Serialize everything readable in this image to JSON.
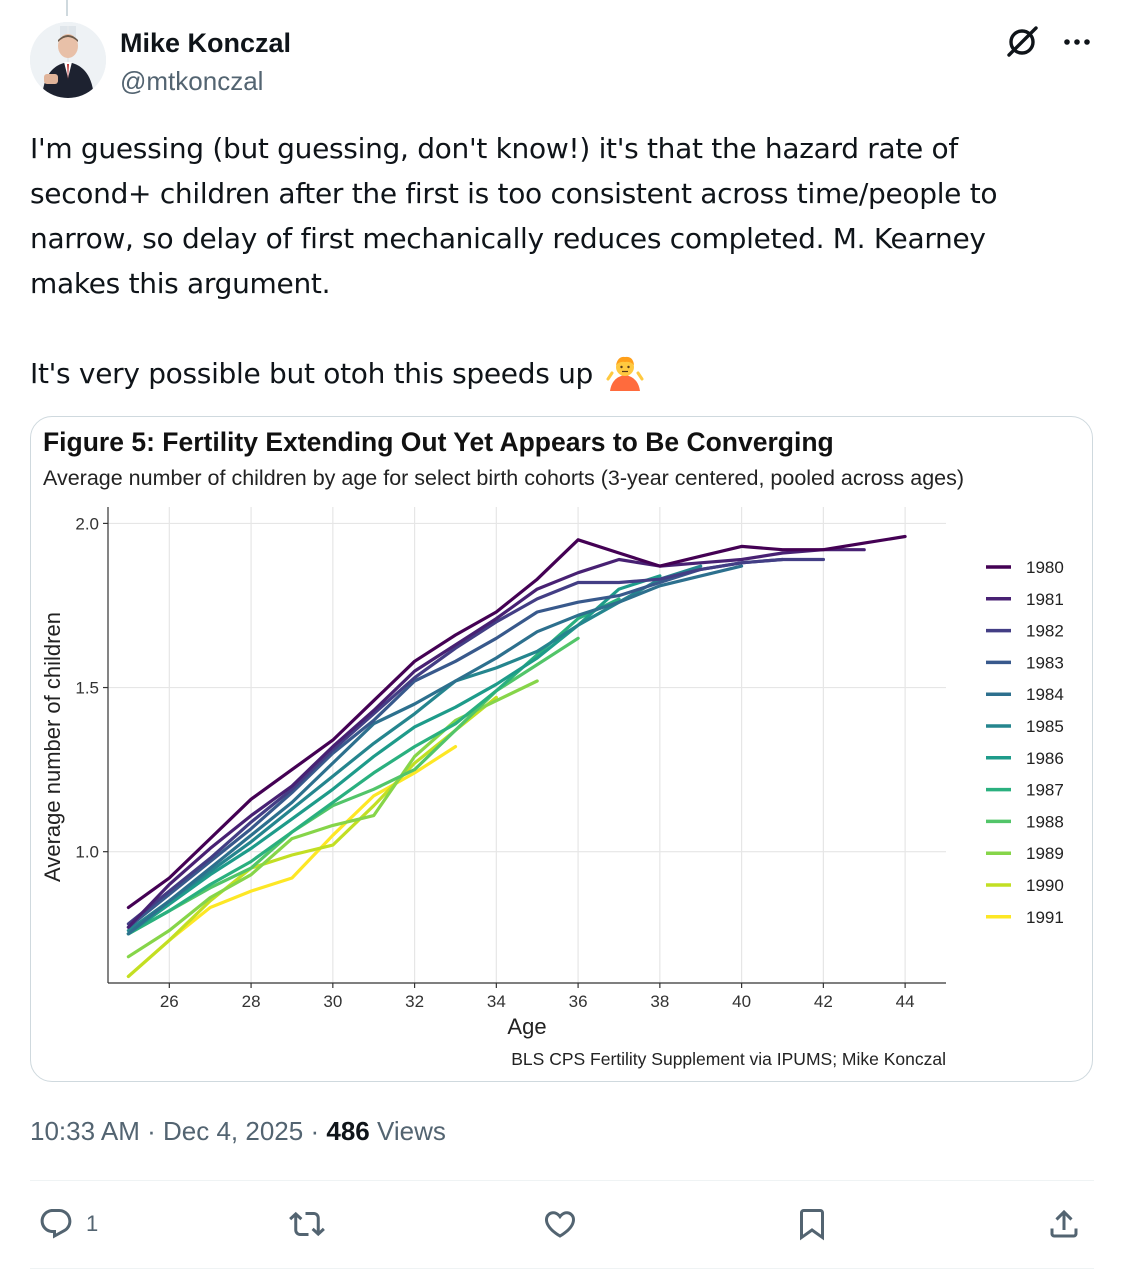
{
  "author": {
    "name": "Mike Konczal",
    "handle": "@mtkonczal"
  },
  "tweet": {
    "lines": [
      "I'm guessing (but guessing, don't know!) it's that the hazard rate of",
      "second+ children after the first is too consistent across time/people to",
      "narrow, so delay of first mechanically reduces completed. M. Kearney",
      "makes this argument.",
      "It's very possible but otoh this speeds up"
    ],
    "emoji": "person-shrugging-emoji"
  },
  "meta": {
    "time": "10:33 AM",
    "sep1": "·",
    "date": "Dec 4, 2025",
    "sep2": "·",
    "views_count": "486",
    "views_label": "Views"
  },
  "actions": {
    "reply_count": "1"
  },
  "icons": {
    "grok": "grok-icon",
    "more": "more-icon",
    "reply": "reply-icon",
    "retweet": "retweet-icon",
    "like": "like-icon",
    "bookmark": "bookmark-icon",
    "share": "share-icon"
  },
  "colors": {
    "text": "#0f1419",
    "secondary": "#536471",
    "border": "#cfd9de"
  },
  "chart_data": {
    "type": "line",
    "title": "Figure 5: Fertility Extending Out Yet Appears to Be Converging",
    "subtitle": "Average number of children by age for select birth cohorts (3-year centered, pooled across ages)",
    "xlabel": "Age",
    "ylabel": "Average number of children",
    "caption": "BLS CPS Fertility Supplement via IPUMS; Mike Konczal",
    "xlim": [
      24.5,
      45
    ],
    "ylim": [
      0.6,
      2.05
    ],
    "xticks": [
      26,
      28,
      30,
      32,
      34,
      36,
      38,
      40,
      42,
      44
    ],
    "yticks": [
      1.0,
      1.5,
      2.0
    ],
    "ytick_labels": [
      "1.0",
      "1.5",
      "2.0"
    ],
    "grid": true,
    "legend_position": "right",
    "series": [
      {
        "name": "1980",
        "color": "#440154",
        "x": [
          25,
          26,
          27,
          28,
          29,
          30,
          31,
          32,
          33,
          34,
          35,
          36,
          37,
          38,
          39,
          40,
          41,
          42,
          43,
          44
        ],
        "y": [
          0.83,
          0.92,
          1.04,
          1.16,
          1.25,
          1.34,
          1.46,
          1.58,
          1.66,
          1.73,
          1.83,
          1.95,
          1.91,
          1.87,
          1.9,
          1.93,
          1.92,
          1.92,
          1.94,
          1.96
        ]
      },
      {
        "name": "1981",
        "color": "#482173",
        "x": [
          25,
          26,
          27,
          28,
          29,
          30,
          31,
          32,
          33,
          34,
          35,
          36,
          37,
          38,
          39,
          40,
          41,
          42,
          43
        ],
        "y": [
          0.77,
          0.9,
          1.01,
          1.11,
          1.2,
          1.32,
          1.43,
          1.55,
          1.63,
          1.71,
          1.8,
          1.85,
          1.89,
          1.87,
          1.88,
          1.89,
          1.91,
          1.92,
          1.92
        ]
      },
      {
        "name": "1982",
        "color": "#433e85",
        "x": [
          25,
          26,
          27,
          28,
          29,
          30,
          31,
          32,
          33,
          34,
          35,
          36,
          37,
          38,
          39,
          40,
          41,
          42
        ],
        "y": [
          0.78,
          0.88,
          0.98,
          1.09,
          1.19,
          1.31,
          1.42,
          1.53,
          1.62,
          1.7,
          1.77,
          1.82,
          1.82,
          1.83,
          1.86,
          1.88,
          1.89,
          1.89
        ]
      },
      {
        "name": "1983",
        "color": "#38598c",
        "x": [
          25,
          26,
          27,
          28,
          29,
          30,
          31,
          32,
          33,
          34,
          35,
          36,
          37,
          38,
          39,
          40,
          41
        ],
        "y": [
          0.77,
          0.87,
          0.97,
          1.07,
          1.18,
          1.3,
          1.4,
          1.52,
          1.58,
          1.65,
          1.73,
          1.76,
          1.78,
          1.82,
          1.86,
          1.88,
          1.89
        ]
      },
      {
        "name": "1984",
        "color": "#2d708e",
        "x": [
          25,
          26,
          27,
          28,
          29,
          30,
          31,
          32,
          33,
          34,
          35,
          36,
          37,
          38,
          39,
          40
        ],
        "y": [
          0.75,
          0.85,
          0.95,
          1.05,
          1.15,
          1.27,
          1.39,
          1.45,
          1.52,
          1.59,
          1.67,
          1.72,
          1.76,
          1.81,
          1.84,
          1.87
        ]
      },
      {
        "name": "1985",
        "color": "#25858e",
        "x": [
          25,
          26,
          27,
          28,
          29,
          30,
          31,
          32,
          33,
          34,
          35,
          36,
          37,
          38,
          39
        ],
        "y": [
          0.76,
          0.85,
          0.94,
          1.03,
          1.13,
          1.23,
          1.33,
          1.42,
          1.52,
          1.56,
          1.61,
          1.69,
          1.76,
          1.83,
          1.87
        ]
      },
      {
        "name": "1986",
        "color": "#1e9b8a",
        "x": [
          25,
          26,
          27,
          28,
          29,
          30,
          31,
          32,
          33,
          34,
          35,
          36,
          37,
          38
        ],
        "y": [
          0.75,
          0.84,
          0.93,
          1.01,
          1.1,
          1.19,
          1.29,
          1.38,
          1.44,
          1.51,
          1.59,
          1.69,
          1.8,
          1.84
        ]
      },
      {
        "name": "1987",
        "color": "#2ab07f",
        "x": [
          25,
          26,
          27,
          28,
          29,
          30,
          31,
          32,
          33,
          34,
          35,
          36,
          37
        ],
        "y": [
          0.75,
          0.82,
          0.9,
          0.97,
          1.06,
          1.15,
          1.24,
          1.32,
          1.39,
          1.49,
          1.6,
          1.71,
          1.77
        ]
      },
      {
        "name": "1988",
        "color": "#52c569",
        "x": [
          25,
          26,
          27,
          28,
          29,
          30,
          31,
          32,
          33,
          34,
          35,
          36
        ],
        "y": [
          0.75,
          0.82,
          0.89,
          0.95,
          1.06,
          1.14,
          1.19,
          1.25,
          1.37,
          1.49,
          1.57,
          1.65
        ]
      },
      {
        "name": "1989",
        "color": "#86d549",
        "x": [
          25,
          26,
          27,
          28,
          29,
          30,
          31,
          32,
          33,
          34,
          35
        ],
        "y": [
          0.68,
          0.76,
          0.86,
          0.93,
          1.04,
          1.08,
          1.11,
          1.29,
          1.4,
          1.46,
          1.52
        ]
      },
      {
        "name": "1990",
        "color": "#c2df23",
        "x": [
          25,
          26,
          27,
          28,
          29,
          30,
          31,
          32,
          33,
          34
        ],
        "y": [
          0.62,
          0.73,
          0.85,
          0.95,
          0.99,
          1.02,
          1.14,
          1.27,
          1.37,
          1.47
        ]
      },
      {
        "name": "1991",
        "color": "#fde725",
        "x": [
          25,
          26,
          27,
          28,
          29,
          30,
          31,
          32,
          33
        ],
        "y": [
          0.62,
          0.73,
          0.83,
          0.88,
          0.92,
          1.05,
          1.17,
          1.24,
          1.32
        ]
      }
    ]
  }
}
